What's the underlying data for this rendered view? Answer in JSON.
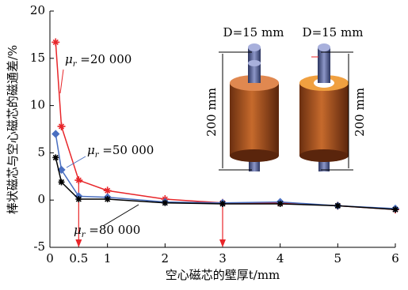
{
  "chart_data": {
    "type": "line",
    "ylabel": "棒状磁芯与空心磁芯的磁通差/%",
    "xlabel": "空心磁芯的壁厚t/mm",
    "xlim": [
      0,
      6
    ],
    "ylim": [
      -5,
      20
    ],
    "xticks": [
      0,
      0.5,
      1,
      2,
      3,
      4,
      5,
      6
    ],
    "yticks": [
      -5,
      0,
      5,
      10,
      15,
      20
    ],
    "x": [
      0.1,
      0.2,
      0.5,
      1,
      2,
      3,
      4,
      5,
      6
    ],
    "series": [
      {
        "name": "μr =20 000",
        "color": "#e8262a",
        "marker": "plus",
        "values": [
          16.7,
          7.8,
          2.1,
          1.0,
          0.1,
          -0.3,
          -0.3,
          -0.6,
          -1.0
        ]
      },
      {
        "name": "μr =50 000",
        "color": "#4a6fc0",
        "marker": "diamond",
        "values": [
          7.0,
          3.2,
          0.4,
          0.3,
          -0.2,
          -0.3,
          -0.2,
          -0.6,
          -0.9
        ]
      },
      {
        "name": "μr =80 000",
        "color": "#000000",
        "marker": "star",
        "values": [
          4.5,
          1.9,
          0.1,
          0.1,
          -0.3,
          -0.4,
          -0.4,
          -0.6,
          -1.0
        ]
      }
    ],
    "inset": {
      "diameter_left": "D=15 mm",
      "diameter_right": "D=15 mm",
      "height_left": "200 mm",
      "height_right": "200 mm"
    }
  }
}
